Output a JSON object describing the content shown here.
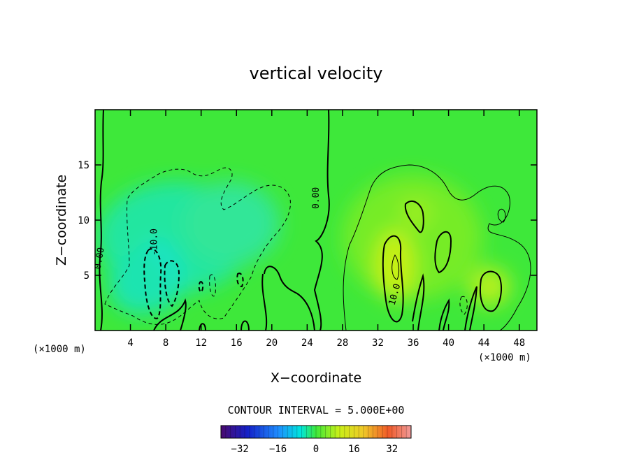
{
  "chart_data": {
    "type": "heatmap",
    "title": "vertical velocity",
    "xlabel": "X−coordinate",
    "ylabel": "Z−coordinate",
    "x_unit": "(×1000 m)",
    "xlim": [
      0,
      50
    ],
    "ylim": [
      0,
      20
    ],
    "x_ticks": [
      4,
      8,
      12,
      16,
      20,
      24,
      28,
      32,
      36,
      40,
      44,
      48
    ],
    "y_ticks": [
      5,
      10,
      15
    ],
    "contour_interval_text": "CONTOUR INTERVAL = 5.000E+00",
    "contour_interval": 5,
    "contour_labels": [
      {
        "text": "0.00",
        "x": 0.8,
        "y": 6.5,
        "rot": -80
      },
      {
        "text": "0.00",
        "x": 25.3,
        "y": 12,
        "rot": -90
      },
      {
        "text": "-10.0",
        "x": 7.0,
        "y": 8.0,
        "rot": -90
      },
      {
        "text": "10.0",
        "x": 34.2,
        "y": 3.2,
        "rot": -75
      }
    ],
    "colorbar": {
      "min": -40,
      "max": 40,
      "ticks": [
        -32,
        -16,
        0,
        16,
        32
      ]
    },
    "features": [
      {
        "kind": "downdraft",
        "x": 7,
        "y": 4,
        "peak": -20
      },
      {
        "kind": "updraft",
        "x": 34,
        "y": 5,
        "peak": 20
      },
      {
        "kind": "updraft",
        "x": 44.5,
        "y": 3.5,
        "peak": 13
      },
      {
        "kind": "updraft",
        "x": 36.5,
        "y": 10.5,
        "peak": 10
      }
    ]
  }
}
